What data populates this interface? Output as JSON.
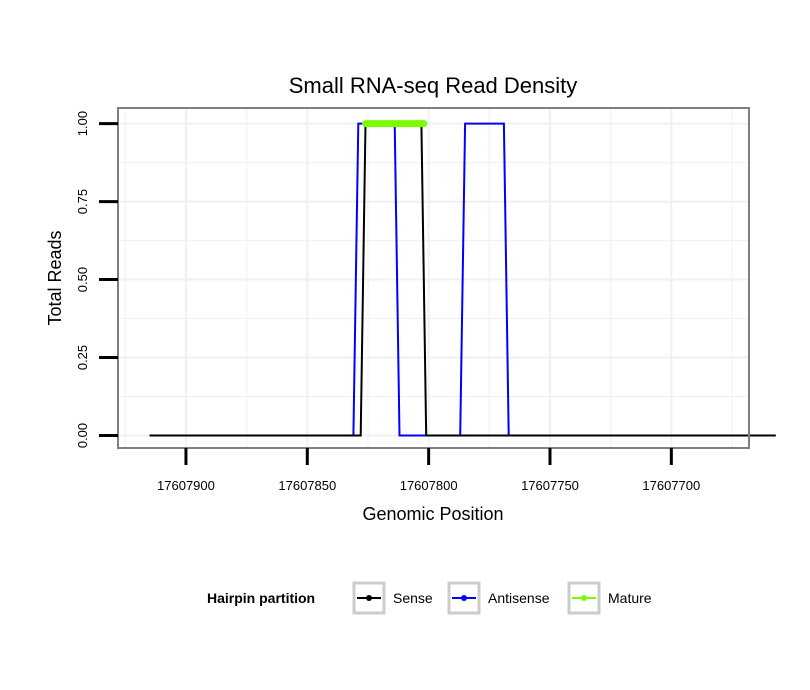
{
  "chart_data": {
    "type": "line",
    "title": "Small RNA-seq Read Density",
    "xlabel": "Genomic Position",
    "ylabel": "Total Reads",
    "x_reversed": true,
    "xlim": [
      17607928,
      17607668
    ],
    "ylim": [
      -0.04,
      1.05
    ],
    "x_ticks": [
      17607900,
      17607850,
      17607800,
      17607750,
      17607700
    ],
    "x_tick_labels": [
      "17607900",
      "17607850",
      "17607800",
      "17607750",
      "17607700"
    ],
    "y_ticks": [
      0,
      0.25,
      0.5,
      0.75,
      1.0
    ],
    "y_tick_labels": [
      "0.00",
      "0.25",
      "0.50",
      "0.75",
      "1.00"
    ],
    "grid": true,
    "legend": {
      "title": "Hairpin partition",
      "position": "bottom",
      "entries": [
        "Sense",
        "Antisense",
        "Mature"
      ]
    },
    "series": [
      {
        "name": "Antisense",
        "color": "#0000ff",
        "x": [
          17607915,
          17607831,
          17607829,
          17607814,
          17607812,
          17607787,
          17607785,
          17607769,
          17607767,
          17607657
        ],
        "y": [
          0,
          0,
          1,
          1,
          0,
          0,
          1,
          1,
          0,
          0
        ]
      },
      {
        "name": "Sense",
        "color": "#000000",
        "x": [
          17607915,
          17607828,
          17607826,
          17607803,
          17607801,
          17607657
        ],
        "y": [
          0,
          0,
          1,
          1,
          0,
          0
        ]
      },
      {
        "name": "Mature",
        "color": "#7cfc00",
        "x": [
          17607826,
          17607802
        ],
        "y": [
          1,
          1
        ]
      }
    ]
  }
}
